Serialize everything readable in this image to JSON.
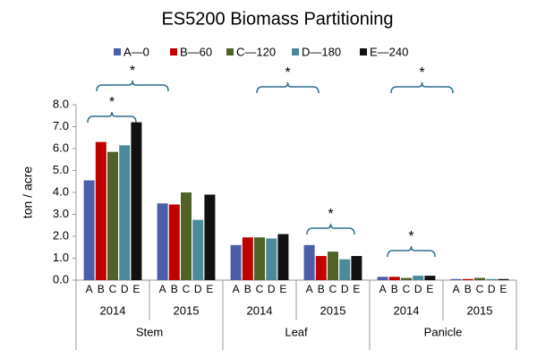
{
  "chart_data": {
    "type": "bar",
    "title": "ES5200 Biomass Partitioning",
    "ylabel": "ton / acre",
    "groups": [
      "Stem",
      "Leaf",
      "Panicle"
    ],
    "categories": [
      "2014",
      "2015",
      "2014",
      "2015",
      "2014",
      "2015"
    ],
    "bar_labels": [
      "A",
      "B",
      "C",
      "D",
      "E"
    ],
    "series": [
      {
        "name": "A—0",
        "color": "#4a5fa8",
        "values": [
          4.55,
          3.5,
          1.6,
          1.6,
          0.15,
          0.05
        ]
      },
      {
        "name": "B—60",
        "color": "#c00000",
        "values": [
          6.3,
          3.45,
          1.95,
          1.1,
          0.15,
          0.05
        ]
      },
      {
        "name": "C—120",
        "color": "#4f6228",
        "values": [
          5.85,
          4.0,
          1.95,
          1.3,
          0.1,
          0.1
        ]
      },
      {
        "name": "D—180",
        "color": "#4a8a9a",
        "values": [
          6.15,
          2.75,
          1.9,
          0.95,
          0.2,
          0.05
        ]
      },
      {
        "name": "E—240",
        "color": "#111111",
        "values": [
          7.2,
          3.9,
          2.1,
          1.1,
          0.2,
          0.05
        ]
      }
    ],
    "ylim": [
      0,
      8
    ],
    "yticks": [
      {
        "value": 0,
        "label": "0.0"
      },
      {
        "value": 1,
        "label": "1.0"
      },
      {
        "value": 2,
        "label": "2.0"
      },
      {
        "value": 3,
        "label": "3.0"
      },
      {
        "value": 4,
        "label": "4.0"
      },
      {
        "value": 5,
        "label": "5.0"
      },
      {
        "value": 6,
        "label": "6.0"
      },
      {
        "value": 7,
        "label": "7.0"
      },
      {
        "value": 8,
        "label": "8.0"
      }
    ],
    "annotations": [
      "*",
      "*",
      "*",
      "*",
      "*",
      "*"
    ]
  }
}
